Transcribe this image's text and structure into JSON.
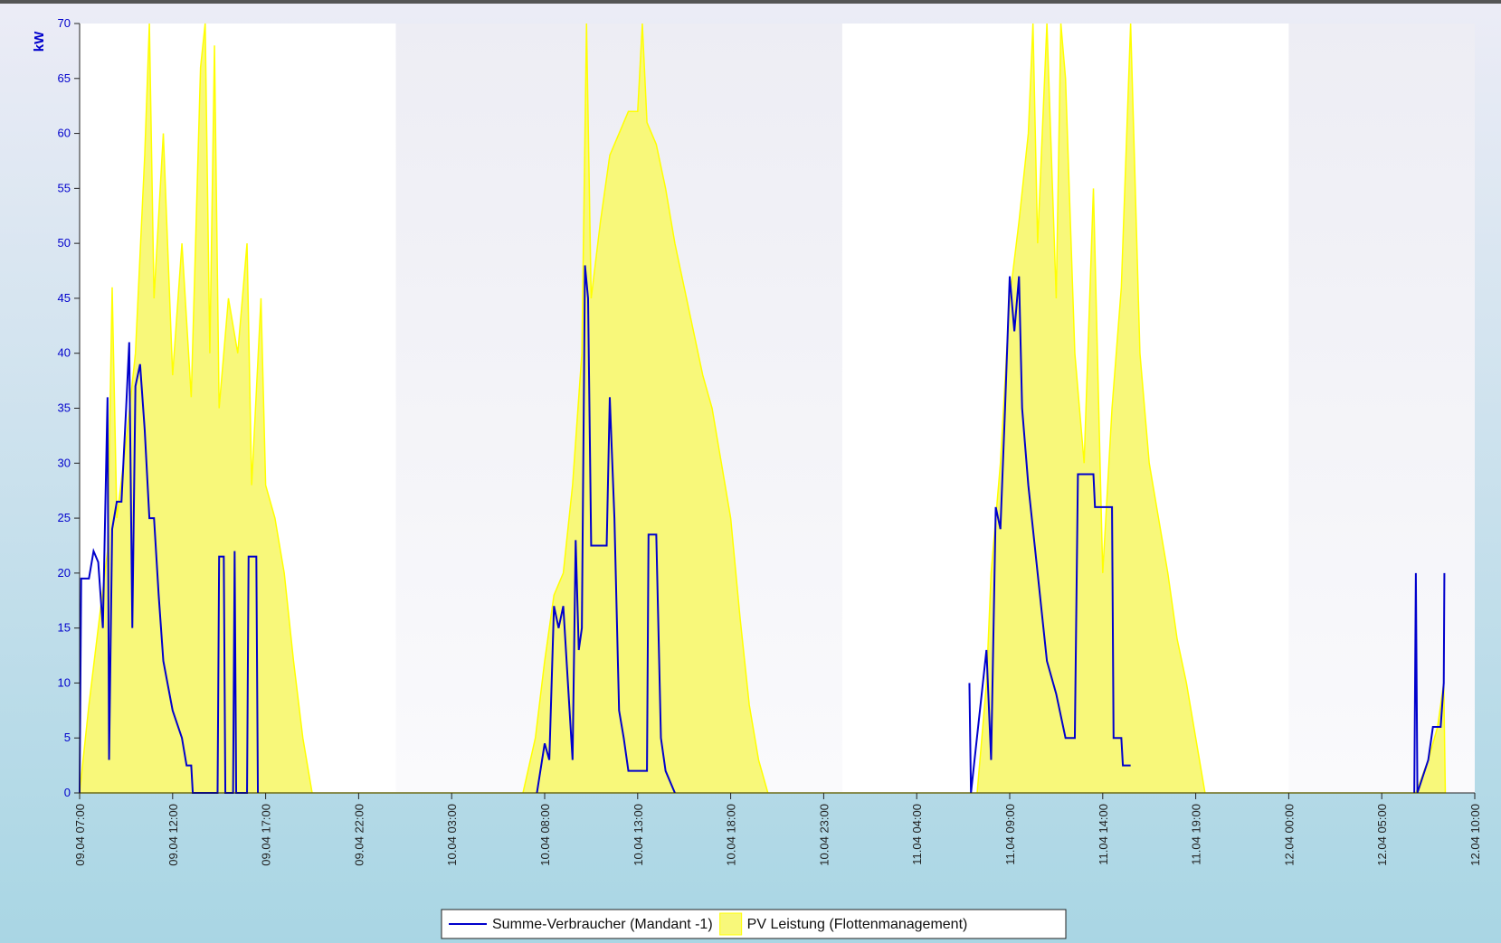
{
  "chart_data": {
    "type": "line-area",
    "y_label": "kW",
    "xlim": [
      "09.04 07:00",
      "12.04 10:00"
    ],
    "xticks": [
      "09.04 07:00",
      "09.04 12:00",
      "09.04 17:00",
      "09.04 22:00",
      "10.04 03:00",
      "10.04 08:00",
      "10.04 13:00",
      "10.04 18:00",
      "10.04 23:00",
      "11.04 04:00",
      "11.04 09:00",
      "11.04 14:00",
      "11.04 19:00",
      "12.04 00:00",
      "12.04 05:00",
      "12.04 10:00"
    ],
    "ylim": [
      0,
      70
    ],
    "yticks": [
      0,
      5,
      10,
      15,
      20,
      25,
      30,
      35,
      40,
      45,
      50,
      55,
      60,
      65,
      70
    ],
    "series": [
      {
        "name": "Summe-Verbraucher (Mandant -1)",
        "kind": "line",
        "color": "#0000cc",
        "x": [
          "09.04 07:00",
          "09.04 07:05",
          "09.04 07:30",
          "09.04 07:45",
          "09.04 08:00",
          "09.04 08:15",
          "09.04 08:30",
          "09.04 08:35",
          "09.04 08:45",
          "09.04 09:00",
          "09.04 09:15",
          "09.04 09:30",
          "09.04 09:40",
          "09.04 09:50",
          "09.04 10:00",
          "09.04 10:15",
          "09.04 10:30",
          "09.04 10:45",
          "09.04 11:00",
          "09.04 11:15",
          "09.04 11:30",
          "09.04 12:00",
          "09.04 12:30",
          "09.04 12:45",
          "09.04 13:00",
          "09.04 13:05",
          "09.04 14:25",
          "09.04 14:30",
          "09.04 14:45",
          "09.04 14:50",
          "09.04 15:15",
          "09.04 15:20",
          "09.04 15:25",
          "09.04 16:00",
          "09.04 16:05",
          "09.04 16:30",
          "09.04 16:35",
          "09.04 16:40",
          "10.04 07:35",
          "10.04 08:00",
          "10.04 08:15",
          "10.04 08:30",
          "10.04 08:45",
          "10.04 09:00",
          "10.04 09:15",
          "10.04 09:30",
          "10.04 09:40",
          "10.04 09:50",
          "10.04 10:00",
          "10.04 10:10",
          "10.04 10:20",
          "10.04 10:30",
          "10.04 11:00",
          "10.04 11:20",
          "10.04 11:30",
          "10.04 11:45",
          "10.04 12:00",
          "10.04 12:15",
          "10.04 12:30",
          "10.04 13:00",
          "10.04 13:30",
          "10.04 13:35",
          "10.04 14:00",
          "10.04 14:15",
          "10.04 14:30",
          "10.04 15:00",
          "10.04 15:05",
          "11.04 06:50",
          "11.04 06:55",
          "11.04 07:45",
          "11.04 08:00",
          "11.04 08:15",
          "11.04 08:30",
          "11.04 08:45",
          "11.04 09:00",
          "11.04 09:15",
          "11.04 09:30",
          "11.04 09:40",
          "11.04 10:00",
          "11.04 10:30",
          "11.04 11:00",
          "11.04 11:30",
          "11.04 12:00",
          "11.04 12:30",
          "11.04 12:40",
          "11.04 13:30",
          "11.04 13:35",
          "11.04 14:30",
          "11.04 14:35",
          "11.04 15:00",
          "11.04 15:05",
          "11.04 15:30",
          "11.04 15:35",
          "12.04 06:45",
          "12.04 06:50",
          "12.04 06:55",
          "12.04 07:30",
          "12.04 07:45",
          "12.04 08:10",
          "12.04 08:20",
          "12.04 08:22"
        ],
        "values": [
          0,
          19.5,
          19.5,
          22,
          21,
          15,
          36,
          3,
          24,
          26.5,
          26.5,
          35,
          41,
          15,
          37,
          39,
          33,
          25,
          25,
          18,
          12,
          7.5,
          5,
          2.5,
          2.5,
          0,
          0,
          21.5,
          21.5,
          0,
          0,
          22,
          0,
          0,
          21.5,
          21.5,
          0,
          null,
          0,
          4.5,
          3,
          17,
          15,
          17,
          10,
          3,
          23,
          13,
          15,
          48,
          45,
          22.5,
          22.5,
          22.5,
          36,
          25,
          7.5,
          5,
          2,
          2,
          2,
          23.5,
          23.5,
          5,
          2,
          0,
          null,
          10,
          0,
          13,
          3,
          26,
          24,
          35,
          47,
          42,
          47,
          35,
          28,
          20,
          12,
          9,
          5,
          5,
          29,
          29,
          26,
          26,
          5,
          5,
          2.5,
          2.5,
          null,
          0,
          20,
          0,
          3,
          6,
          6,
          10,
          20
        ]
      },
      {
        "name": "PV Leistung (Flottenmanagement)",
        "kind": "area",
        "color": "#ffff00",
        "fill": "#f8f87a",
        "x": [
          "09.04 07:00",
          "09.04 07:30",
          "09.04 08:00",
          "09.04 08:30",
          "09.04 08:45",
          "09.04 09:00",
          "09.04 09:30",
          "09.04 10:00",
          "09.04 10:30",
          "09.04 10:45",
          "09.04 11:00",
          "09.04 11:30",
          "09.04 12:00",
          "09.04 12:30",
          "09.04 13:00",
          "09.04 13:30",
          "09.04 13:45",
          "09.04 14:00",
          "09.04 14:15",
          "09.04 14:30",
          "09.04 15:00",
          "09.04 15:30",
          "09.04 16:00",
          "09.04 16:15",
          "09.04 16:45",
          "09.04 17:00",
          "09.04 17:30",
          "09.04 18:00",
          "09.04 18:30",
          "09.04 19:00",
          "09.04 19:30",
          "10.04 06:50",
          "10.04 07:30",
          "10.04 08:00",
          "10.04 08:30",
          "10.04 09:00",
          "10.04 09:30",
          "10.04 10:00",
          "10.04 10:15",
          "10.04 10:30",
          "10.04 11:00",
          "10.04 11:30",
          "10.04 12:00",
          "10.04 12:30",
          "10.04 13:00",
          "10.04 13:15",
          "10.04 13:30",
          "10.04 14:00",
          "10.04 14:30",
          "10.04 15:00",
          "10.04 15:30",
          "10.04 16:00",
          "10.04 16:30",
          "10.04 17:00",
          "10.04 17:30",
          "10.04 18:00",
          "10.04 18:30",
          "10.04 19:00",
          "10.04 19:30",
          "10.04 20:00",
          "11.04 07:15",
          "11.04 07:45",
          "11.04 08:00",
          "11.04 08:30",
          "11.04 09:00",
          "11.04 09:30",
          "11.04 10:00",
          "11.04 10:15",
          "11.04 10:30",
          "11.04 11:00",
          "11.04 11:30",
          "11.04 11:45",
          "11.04 12:00",
          "11.04 12:30",
          "11.04 13:00",
          "11.04 13:30",
          "11.04 14:00",
          "11.04 14:30",
          "11.04 15:00",
          "11.04 15:30",
          "11.04 16:00",
          "11.04 16:30",
          "11.04 17:00",
          "11.04 17:30",
          "11.04 18:00",
          "11.04 18:30",
          "11.04 19:00",
          "11.04 19:30",
          "12.04 06:50",
          "12.04 07:30",
          "12.04 08:00",
          "12.04 08:20",
          "12.04 08:25"
        ],
        "values": [
          0,
          8,
          15,
          22,
          46,
          25,
          32,
          40,
          58,
          70,
          45,
          60,
          38,
          50,
          36,
          66,
          70,
          40,
          68,
          35,
          45,
          40,
          50,
          28,
          45,
          28,
          25,
          20,
          12,
          5,
          0,
          0,
          5,
          12,
          18,
          20,
          28,
          40,
          70,
          45,
          52,
          58,
          60,
          62,
          62,
          70,
          61,
          59,
          55,
          50,
          46,
          42,
          38,
          35,
          30,
          25,
          16,
          8,
          3,
          0,
          0,
          10,
          20,
          30,
          45,
          52,
          60,
          70,
          50,
          70,
          45,
          70,
          65,
          40,
          30,
          55,
          20,
          35,
          46,
          70,
          40,
          30,
          25,
          20,
          14,
          10,
          5,
          0,
          0,
          3,
          6,
          10,
          0
        ]
      }
    ],
    "legend": "bottom"
  }
}
